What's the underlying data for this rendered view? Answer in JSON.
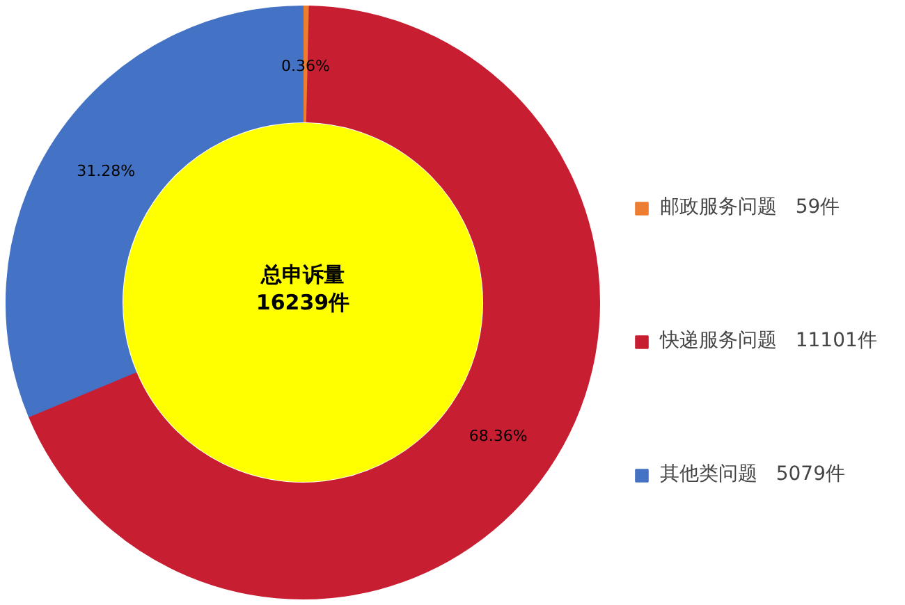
{
  "chart_data": {
    "type": "donut",
    "categories": [
      "邮政服务问题   59件",
      "快递服务问题   11101件",
      "其他类问题   5079件"
    ],
    "values": [
      0.36,
      68.36,
      31.28
    ],
    "colors": [
      "#ed7d31",
      "#c81e32",
      "#4472c4"
    ],
    "value_labels": [
      "0.36%",
      "68.36%",
      "31.28%"
    ],
    "legend": "right",
    "annotations": [
      "总申诉量",
      "16239件"
    ]
  }
}
